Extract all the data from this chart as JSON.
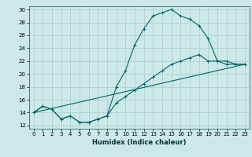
{
  "xlabel": "Humidex (Indice chaleur)",
  "bg_color": "#cce8e8",
  "grid_color": "#aacccc",
  "line_color": "#006666",
  "xlim": [
    -0.5,
    23.5
  ],
  "ylim": [
    11.5,
    30.5
  ],
  "xticks": [
    0,
    1,
    2,
    3,
    4,
    5,
    6,
    7,
    8,
    9,
    10,
    11,
    12,
    13,
    14,
    15,
    16,
    17,
    18,
    19,
    20,
    21,
    22,
    23
  ],
  "yticks": [
    12,
    14,
    16,
    18,
    20,
    22,
    24,
    26,
    28,
    30
  ],
  "curve1_x": [
    0,
    1,
    2,
    3,
    4,
    5,
    6,
    7,
    8,
    9,
    10,
    11,
    12,
    13,
    14,
    15,
    16,
    17,
    18,
    19,
    20,
    21,
    22,
    23
  ],
  "curve1_y": [
    14,
    15,
    14.5,
    13,
    13.5,
    12.5,
    12.5,
    13,
    13.5,
    18,
    20.5,
    24.5,
    27,
    29,
    29.5,
    30,
    29,
    28.5,
    27.5,
    25.5,
    22,
    21.5,
    21.5,
    21.5
  ],
  "curve2_x": [
    0,
    1,
    2,
    3,
    4,
    5,
    6,
    7,
    8,
    9,
    10,
    11,
    12,
    13,
    14,
    15,
    16,
    17,
    18,
    19,
    20,
    21,
    22,
    23
  ],
  "curve2_y": [
    14,
    15,
    14.5,
    13,
    13.5,
    12.5,
    12.5,
    13,
    13.5,
    15.5,
    16.5,
    17.5,
    18.5,
    19.5,
    20.5,
    21.5,
    22,
    22.5,
    23.0,
    22.0,
    22.0,
    22.0,
    21.5,
    21.5
  ],
  "curve3_x": [
    0,
    23
  ],
  "curve3_y": [
    14,
    21.5
  ]
}
